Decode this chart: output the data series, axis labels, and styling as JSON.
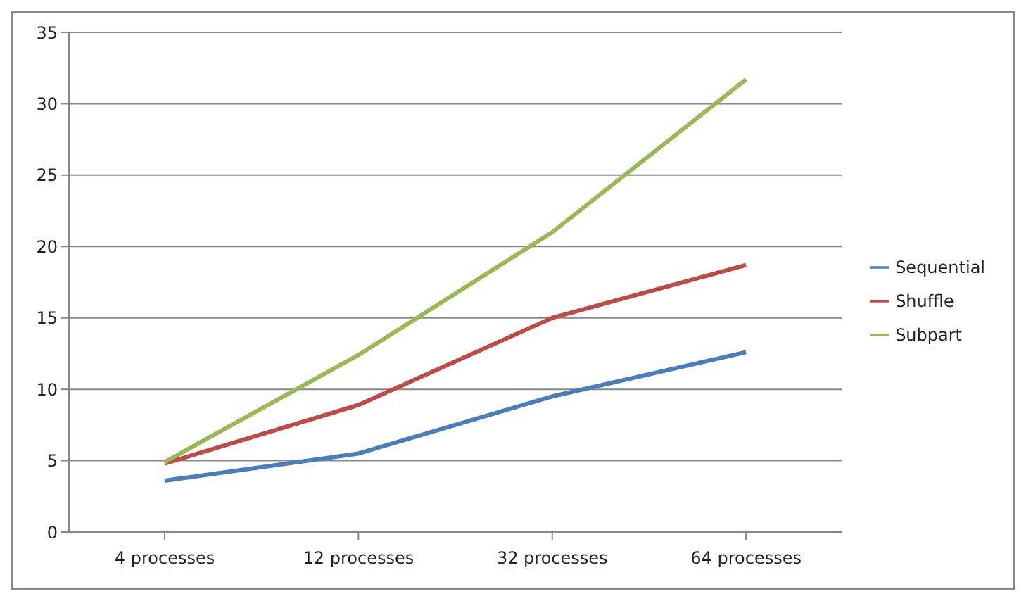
{
  "chart_data": {
    "type": "line",
    "categories": [
      "4 processes",
      "12 processes",
      "32 processes",
      "64 processes"
    ],
    "series": [
      {
        "name": "Sequential",
        "color": "#4a7ebb",
        "values": [
          3.6,
          5.5,
          9.5,
          12.6
        ]
      },
      {
        "name": "Shuffle",
        "color": "#be4b48",
        "values": [
          4.8,
          8.9,
          15.0,
          18.7
        ]
      },
      {
        "name": "Subpart",
        "color": "#98b954",
        "values": [
          4.9,
          12.4,
          21.0,
          31.7
        ]
      }
    ],
    "ylim": [
      0,
      35
    ],
    "yticks": [
      0,
      5,
      10,
      15,
      20,
      25,
      30,
      35
    ],
    "grid": "y",
    "legend": "right",
    "marker": "none",
    "line_style": "solid"
  }
}
